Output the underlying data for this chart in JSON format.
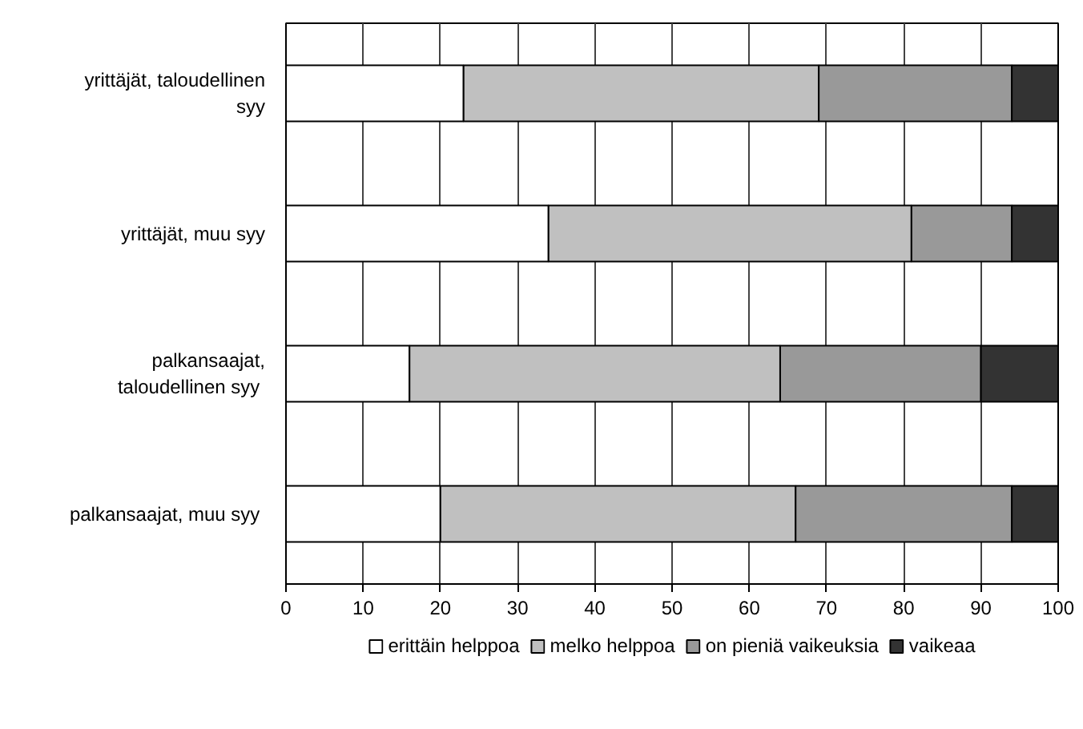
{
  "chart_data": {
    "type": "bar",
    "orientation": "horizontal",
    "stacked": true,
    "categories": [
      "yrittäjät, taloudellinen syy",
      "yrittäjät, muu syy",
      "palkansaajat, taloudellinen  syy",
      "palkansaajat,  muu syy"
    ],
    "series": [
      {
        "name": "erittäin helppoa",
        "color": "#ffffff",
        "values": [
          23,
          34,
          16,
          20
        ]
      },
      {
        "name": "melko helppoa",
        "color": "#c0c0c0",
        "values": [
          46,
          47,
          48,
          46
        ]
      },
      {
        "name": "on pieniä vaikeuksia",
        "color": "#999999",
        "values": [
          25,
          13,
          26,
          28
        ]
      },
      {
        "name": "vaikeaa",
        "color": "#333333",
        "values": [
          6,
          6,
          10,
          6
        ]
      }
    ],
    "xlim": [
      0,
      100
    ],
    "xticks": [
      0,
      10,
      20,
      30,
      40,
      50,
      60,
      70,
      80,
      90,
      100
    ],
    "grid": "x",
    "legend": "bottom"
  }
}
